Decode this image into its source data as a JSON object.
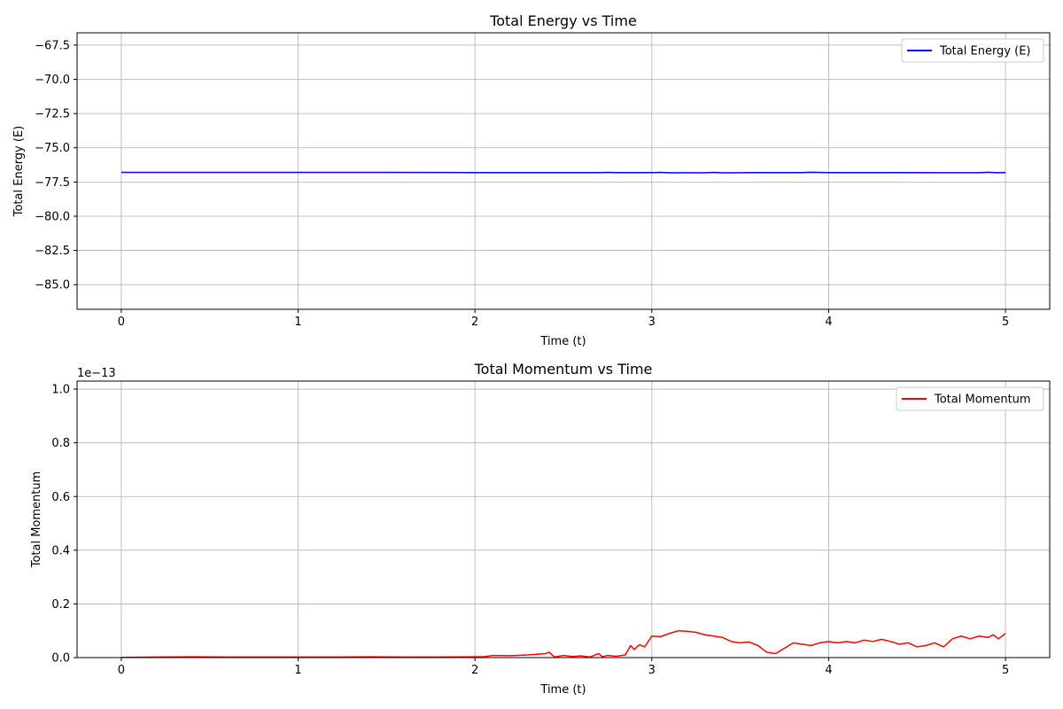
{
  "chart_data": [
    {
      "type": "line",
      "title": "Total Energy vs Time",
      "xlabel": "Time (t)",
      "ylabel": "Total Energy (E)",
      "xlim": [
        -0.25,
        5.25
      ],
      "ylim": [
        -86.8,
        -66.6
      ],
      "xticks": [
        0,
        1,
        2,
        3,
        4,
        5
      ],
      "xtick_labels": [
        "0",
        "1",
        "2",
        "3",
        "4",
        "5"
      ],
      "yticks": [
        -85.0,
        -82.5,
        -80.0,
        -77.5,
        -75.0,
        -72.5,
        -70.0,
        -67.5
      ],
      "ytick_labels": [
        "−85.0",
        "−82.5",
        "−80.0",
        "−77.5",
        "−75.0",
        "−72.5",
        "−70.0",
        "−67.5"
      ],
      "grid": true,
      "legend_position": "top-right",
      "series": [
        {
          "name": "Total Energy (E)",
          "color": "#0000ff",
          "x": [
            0,
            0.5,
            1,
            1.5,
            2,
            2.5,
            2.7,
            2.75,
            2.8,
            3.0,
            3.05,
            3.1,
            3.2,
            3.3,
            3.35,
            3.4,
            3.6,
            3.85,
            3.9,
            4.0,
            4.3,
            4.6,
            4.85,
            4.9,
            4.95,
            5.0
          ],
          "y": [
            -76.8,
            -76.8,
            -76.8,
            -76.8,
            -76.81,
            -76.81,
            -76.81,
            -76.8,
            -76.81,
            -76.81,
            -76.8,
            -76.83,
            -76.82,
            -76.83,
            -76.8,
            -76.83,
            -76.81,
            -76.81,
            -76.79,
            -76.81,
            -76.81,
            -76.82,
            -76.82,
            -76.79,
            -76.82,
            -76.81
          ]
        }
      ]
    },
    {
      "type": "line",
      "title": "Total Momentum vs Time",
      "xlabel": "Time (t)",
      "ylabel": "Total Momentum",
      "y_offset_label": "1e−13",
      "xlim": [
        -0.25,
        5.25
      ],
      "ylim": [
        0,
        1.03
      ],
      "xticks": [
        0,
        1,
        2,
        3,
        4,
        5
      ],
      "xtick_labels": [
        "0",
        "1",
        "2",
        "3",
        "4",
        "5"
      ],
      "yticks": [
        0.0,
        0.2,
        0.4,
        0.6,
        0.8,
        1.0
      ],
      "ytick_labels": [
        "0.0",
        "0.2",
        "0.4",
        "0.6",
        "0.8",
        "1.0"
      ],
      "grid": true,
      "legend_position": "top-right",
      "series": [
        {
          "name": "Total Momentum",
          "color": "#ff0000",
          "x": [
            0,
            0.2,
            0.4,
            0.6,
            0.8,
            1.0,
            1.2,
            1.4,
            1.6,
            1.8,
            2.0,
            2.05,
            2.1,
            2.2,
            2.3,
            2.4,
            2.42,
            2.45,
            2.5,
            2.55,
            2.6,
            2.65,
            2.7,
            2.72,
            2.75,
            2.8,
            2.85,
            2.88,
            2.9,
            2.93,
            2.96,
            3.0,
            3.05,
            3.1,
            3.15,
            3.2,
            3.25,
            3.3,
            3.35,
            3.4,
            3.45,
            3.5,
            3.55,
            3.6,
            3.65,
            3.7,
            3.75,
            3.8,
            3.85,
            3.9,
            3.95,
            4.0,
            4.05,
            4.1,
            4.15,
            4.2,
            4.25,
            4.3,
            4.35,
            4.4,
            4.45,
            4.5,
            4.55,
            4.6,
            4.65,
            4.7,
            4.75,
            4.8,
            4.85,
            4.9,
            4.93,
            4.96,
            5.0
          ],
          "y": [
            0.001,
            0.002,
            0.003,
            0.002,
            0.002,
            0.002,
            0.002,
            0.003,
            0.002,
            0.002,
            0.003,
            0.003,
            0.008,
            0.007,
            0.01,
            0.015,
            0.02,
            0.002,
            0.008,
            0.004,
            0.006,
            0.002,
            0.015,
            0.003,
            0.008,
            0.005,
            0.01,
            0.045,
            0.03,
            0.048,
            0.04,
            0.08,
            0.078,
            0.09,
            0.1,
            0.098,
            0.094,
            0.085,
            0.08,
            0.075,
            0.06,
            0.055,
            0.058,
            0.045,
            0.02,
            0.015,
            0.035,
            0.055,
            0.05,
            0.045,
            0.055,
            0.06,
            0.055,
            0.06,
            0.055,
            0.065,
            0.06,
            0.068,
            0.06,
            0.05,
            0.055,
            0.04,
            0.045,
            0.055,
            0.04,
            0.07,
            0.08,
            0.07,
            0.08,
            0.075,
            0.085,
            0.07,
            0.09
          ]
        }
      ]
    }
  ]
}
